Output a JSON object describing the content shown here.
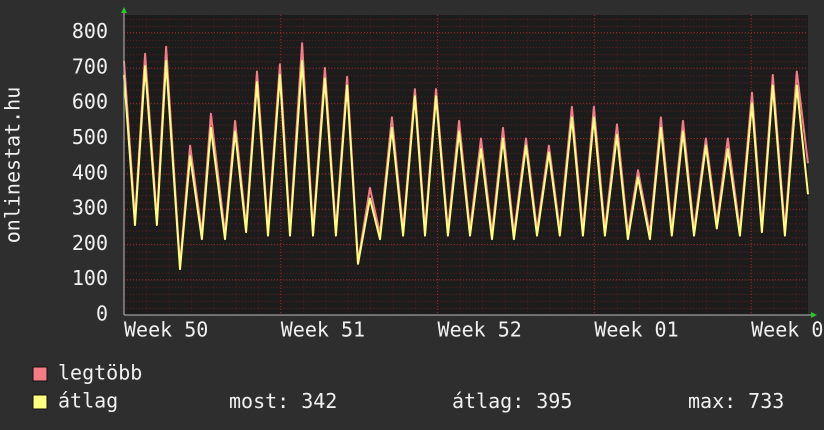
{
  "chart_data": {
    "type": "line",
    "ylabel": "onlinestat.hu",
    "x": [
      0,
      0.49,
      0.94,
      1.47,
      1.88,
      2.5,
      2.95,
      3.48,
      3.88,
      4.51,
      4.96,
      5.45,
      5.94,
      6.43,
      6.96,
      7.41,
      7.95,
      8.44,
      8.97,
      9.46,
      9.96,
      10.45,
      10.98,
      11.43,
      11.96,
      12.46,
      12.99,
      13.44,
      13.93,
      14.46,
      14.96,
      15.45,
      15.94,
      16.43,
      16.92,
      17.41,
      17.95,
      18.44,
      18.97,
      19.46,
      20,
      20.49,
      20.98,
      21.47,
      22.01,
      22.5,
      22.95,
      23.48,
      23.97,
      24.46,
      24.96,
      25.45,
      25.98,
      26.47,
      26.96,
      27.5,
      28.04,
      28.48,
      28.97,
      29.51,
      30.04,
      30.54
    ],
    "xlim": [
      0,
      30.54
    ],
    "xticks": [
      {
        "value": 0,
        "label": "Week 50"
      },
      {
        "value": 7,
        "label": "Week 51"
      },
      {
        "value": 14,
        "label": "Week 52"
      },
      {
        "value": 21,
        "label": "Week 01"
      },
      {
        "value": 28,
        "label": "Week 0"
      }
    ],
    "ylim": [
      0,
      850
    ],
    "yticks": [
      0,
      100,
      200,
      300,
      400,
      500,
      600,
      700,
      800
    ],
    "grid": true,
    "series": [
      {
        "name": "legtöbb",
        "color": "#f47c84",
        "values": [
          720,
          270,
          740,
          270,
          760,
          140,
          480,
          230,
          570,
          230,
          550,
          250,
          690,
          240,
          710,
          240,
          770,
          240,
          700,
          240,
          675,
          150,
          360,
          230,
          560,
          240,
          640,
          240,
          640,
          240,
          550,
          240,
          500,
          230,
          530,
          230,
          500,
          240,
          480,
          240,
          590,
          240,
          590,
          240,
          540,
          230,
          410,
          230,
          560,
          240,
          550,
          240,
          500,
          260,
          500,
          240,
          630,
          250,
          680,
          240,
          690,
          430
        ]
      },
      {
        "name": "átlag",
        "color": "#ffff80",
        "values": [
          680,
          255,
          705,
          255,
          720,
          130,
          450,
          215,
          530,
          215,
          520,
          235,
          660,
          225,
          680,
          225,
          720,
          225,
          670,
          225,
          650,
          145,
          330,
          215,
          530,
          225,
          620,
          225,
          620,
          225,
          520,
          225,
          470,
          215,
          500,
          215,
          480,
          225,
          460,
          225,
          560,
          225,
          560,
          225,
          510,
          215,
          390,
          215,
          530,
          225,
          520,
          225,
          480,
          245,
          470,
          225,
          600,
          235,
          650,
          225,
          650,
          342
        ]
      }
    ],
    "stats": [
      {
        "label": "most:",
        "value": 342
      },
      {
        "label": "átlag:",
        "value": 395
      },
      {
        "label": "max:",
        "value": 733
      }
    ]
  }
}
